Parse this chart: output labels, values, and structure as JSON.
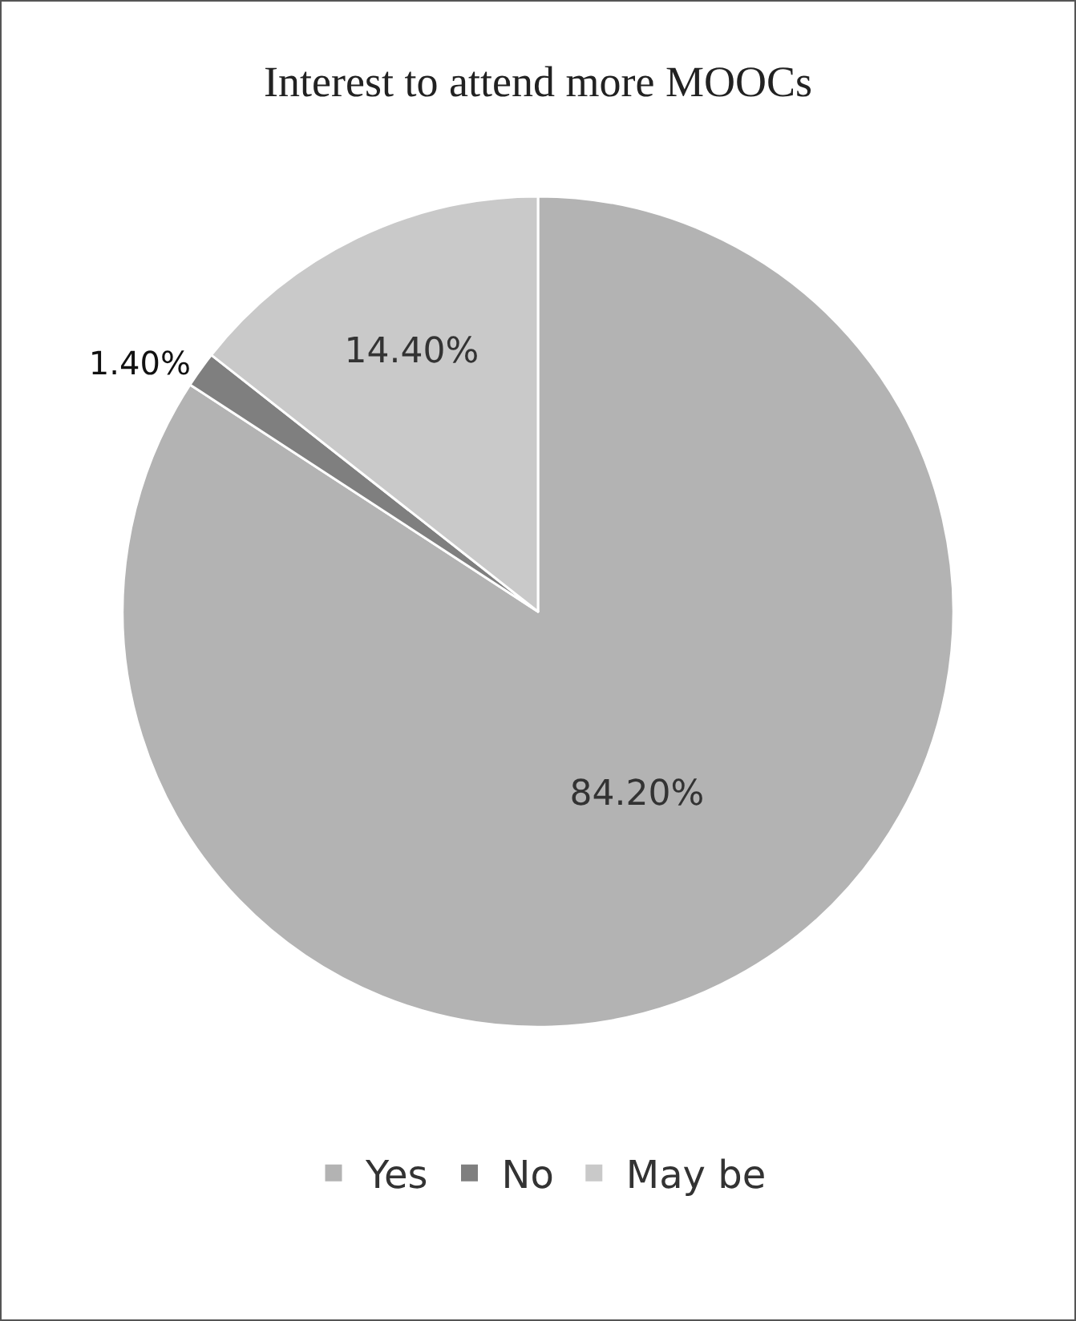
{
  "chart_data": {
    "type": "pie",
    "title": "Interest to attend more MOOCs",
    "categories": [
      "Yes",
      "No",
      "May be"
    ],
    "values": [
      84.2,
      1.4,
      14.4
    ],
    "value_labels": [
      "84.20%",
      "1.40%",
      "14.40%"
    ],
    "colors": [
      "#b3b3b3",
      "#7f7f7f",
      "#c9c9c9"
    ],
    "legend": "bottom"
  }
}
